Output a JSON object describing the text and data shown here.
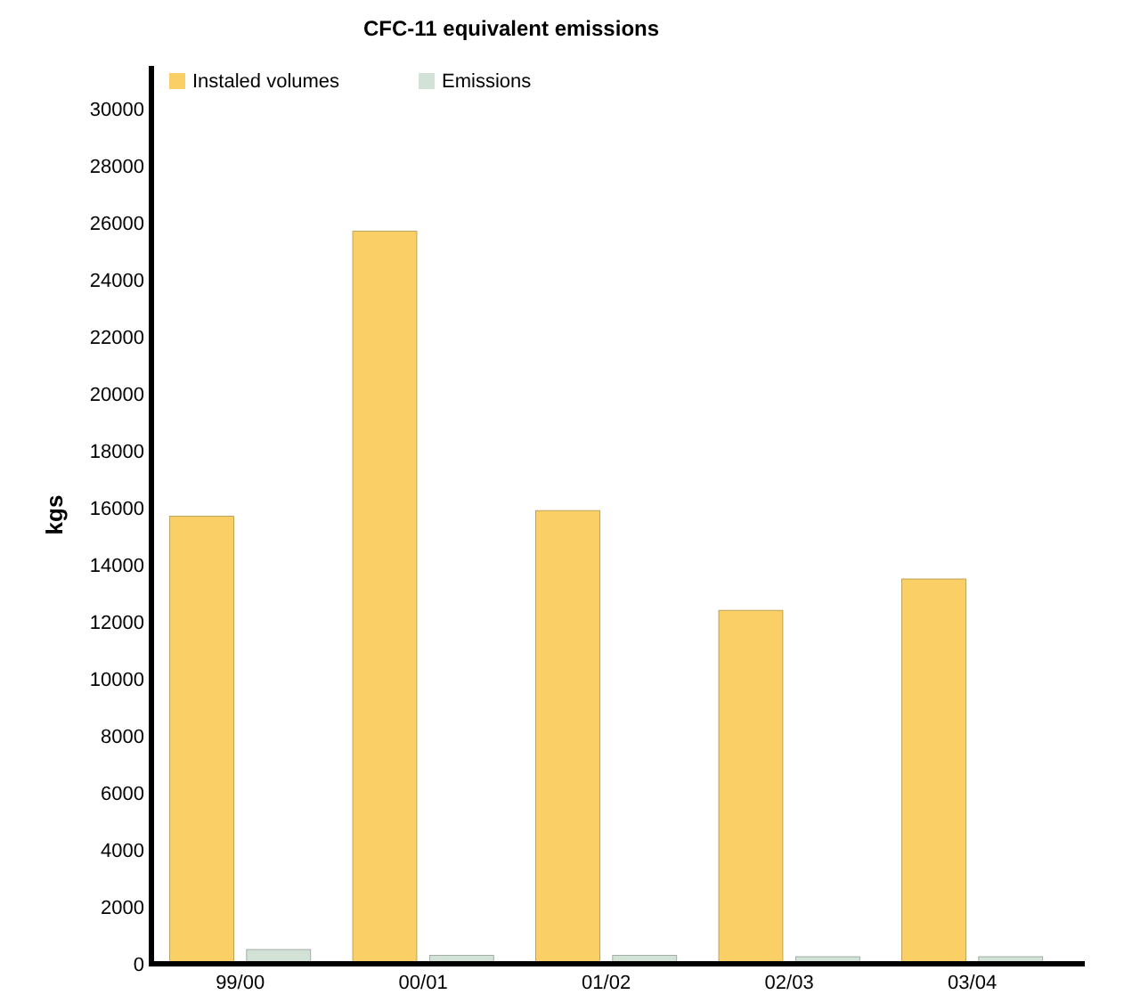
{
  "chart_data": {
    "type": "bar",
    "title": "CFC-11 equivalent emissions",
    "ylabel": "kgs",
    "categories": [
      "99/00",
      "00/01",
      "01/02",
      "02/03",
      "03/04"
    ],
    "series": [
      {
        "name": "Instaled volumes",
        "color": "#fad066",
        "values": [
          15700,
          25700,
          15900,
          12400,
          13500
        ]
      },
      {
        "name": "Emissions",
        "color": "#d3e2d6",
        "values": [
          500,
          300,
          300,
          250,
          250
        ]
      }
    ],
    "ylim": [
      0,
      31500
    ],
    "yticks": [
      0,
      2000,
      4000,
      6000,
      8000,
      10000,
      12000,
      14000,
      16000,
      18000,
      20000,
      22000,
      24000,
      26000,
      28000,
      30000
    ],
    "grid": false,
    "legend": "top left"
  }
}
